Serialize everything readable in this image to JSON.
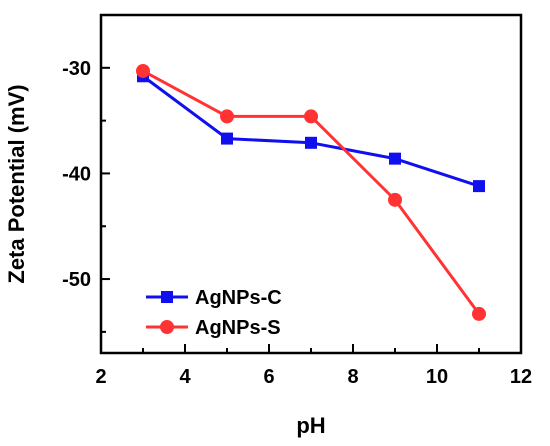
{
  "chart_data": {
    "type": "line",
    "title": "",
    "xlabel": "pH",
    "ylabel": "Zeta Potential (mV)",
    "xlim": [
      2,
      12
    ],
    "ylim": [
      -57,
      -25
    ],
    "x_ticks": [
      2,
      4,
      6,
      8,
      10,
      12
    ],
    "y_ticks": [
      -30,
      -40,
      -50
    ],
    "grid": false,
    "legend_position": "bottom-left",
    "series": [
      {
        "name": "AgNPs-C",
        "color": "#1010ee",
        "marker": "square",
        "x": [
          3,
          5,
          7,
          9,
          11
        ],
        "y": [
          -30.8,
          -36.7,
          -37.1,
          -38.6,
          -41.2
        ]
      },
      {
        "name": "AgNPs-S",
        "color": "#ff3333",
        "marker": "circle",
        "x": [
          3,
          5,
          7,
          9,
          11
        ],
        "y": [
          -30.3,
          -34.6,
          -34.6,
          -42.5,
          -53.3
        ]
      }
    ]
  }
}
